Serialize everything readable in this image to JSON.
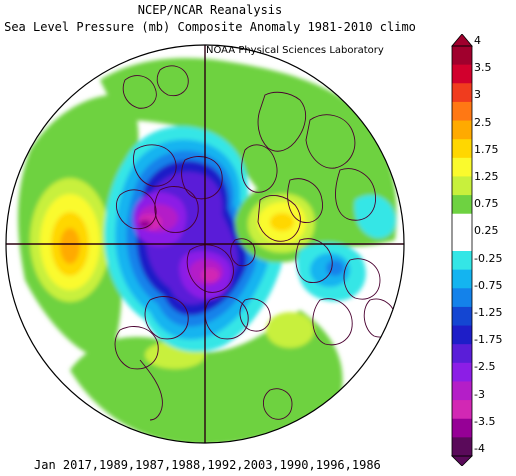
{
  "header": {
    "title_line1": "NCEP/NCAR Reanalysis",
    "title_line2": "Sea Level Pressure (mb) Composite Anomaly 1981-2010 climo",
    "credit": "NOAA Physical Sciences Laboratory"
  },
  "footer": {
    "dates": "Jan 2017,1989,1987,1988,1992,2003,1990,1996,1986"
  },
  "colorbar": {
    "labels": [
      "4",
      "3.5",
      "3",
      "2.5",
      "1.75",
      "1.25",
      "0.75",
      "0.25",
      "-0.25",
      "-0.75",
      "-1.25",
      "-1.75",
      "-2.5",
      "-3",
      "-3.5",
      "-4"
    ],
    "colors": [
      "#a0002d",
      "#d2002d",
      "#f03c1e",
      "#ff7814",
      "#ffaa00",
      "#ffd700",
      "#fafa2d",
      "#c8f03c",
      "#6ed241",
      "#ffffff",
      "#ffffff",
      "#34e6e6",
      "#14b4f0",
      "#1482ea",
      "#1446d2",
      "#1e1ec8",
      "#5a1ed8",
      "#8c1ee6",
      "#b41ec8",
      "#d228b4",
      "#960096",
      "#5a0a5a"
    ]
  },
  "map": {
    "projection": "north-polar-stereographic",
    "variable": "sea level pressure anomaly",
    "units": "mb"
  }
}
